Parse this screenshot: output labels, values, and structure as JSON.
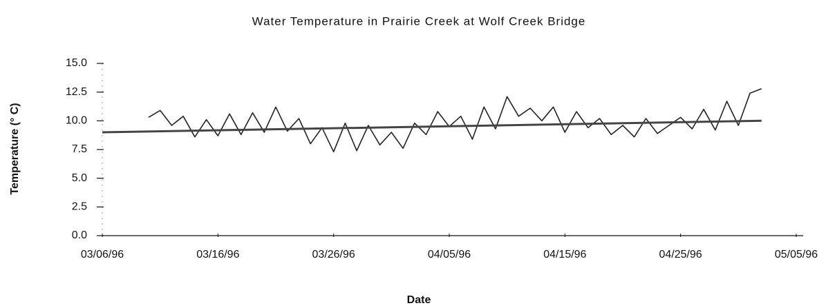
{
  "chart_data": {
    "type": "line",
    "title": "Water Temperature in Prairie Creek at Wolf Creek Bridge",
    "xlabel": "Date",
    "ylabel": "Temperature (° C)",
    "xlim": [
      "03/06/96",
      "05/05/96"
    ],
    "xticks": [
      "03/06/96",
      "03/16/96",
      "03/26/96",
      "04/05/96",
      "04/15/96",
      "04/25/96",
      "05/05/96"
    ],
    "ylim": [
      0,
      15
    ],
    "yticks": [
      {
        "value": 0,
        "label": "0.0"
      },
      {
        "value": 2.5,
        "label": "2.5"
      },
      {
        "value": 5,
        "label": "5.0"
      },
      {
        "value": 7.5,
        "label": "7.5"
      },
      {
        "value": 10,
        "label": "10.0"
      },
      {
        "value": 12.5,
        "label": "12.5"
      },
      {
        "value": 15,
        "label": "15.0"
      }
    ],
    "series": [
      {
        "color": "#222222",
        "x": [
          "03/10/96",
          "03/11/96",
          "03/12/96",
          "03/13/96",
          "03/14/96",
          "03/15/96",
          "03/16/96",
          "03/17/96",
          "03/18/96",
          "03/19/96",
          "03/20/96",
          "03/21/96",
          "03/22/96",
          "03/23/96",
          "03/24/96",
          "03/25/96",
          "03/26/96",
          "03/27/96",
          "03/28/96",
          "03/29/96",
          "03/30/96",
          "03/31/96",
          "04/01/96",
          "04/02/96",
          "04/03/96",
          "04/04/96",
          "04/05/96",
          "04/06/96",
          "04/07/96",
          "04/08/96",
          "04/09/96",
          "04/10/96",
          "04/11/96",
          "04/12/96",
          "04/13/96",
          "04/14/96",
          "04/15/96",
          "04/16/96",
          "04/17/96",
          "04/18/96",
          "04/19/96",
          "04/20/96",
          "04/21/96",
          "04/22/96",
          "04/23/96",
          "04/24/96",
          "04/25/96",
          "04/26/96",
          "04/27/96",
          "04/28/96",
          "04/29/96",
          "04/30/96",
          "05/01/96",
          "05/02/96"
        ],
        "values": [
          10.3,
          10.9,
          9.6,
          10.4,
          8.6,
          10.1,
          8.7,
          10.6,
          8.8,
          10.7,
          9.0,
          11.2,
          9.1,
          10.2,
          8.0,
          9.4,
          7.3,
          9.8,
          7.4,
          9.6,
          7.9,
          9.0,
          7.6,
          9.8,
          8.8,
          10.8,
          9.5,
          10.4,
          8.4,
          11.2,
          9.3,
          12.1,
          10.4,
          11.1,
          10.0,
          11.2,
          9.0,
          10.8,
          9.4,
          10.2,
          8.8,
          9.6,
          8.6,
          10.2,
          8.9,
          9.6,
          10.3,
          9.3,
          11.0,
          9.2,
          11.7,
          9.6,
          12.4,
          12.8
        ]
      },
      {
        "color": "#444444",
        "x": [
          "03/06/96",
          "05/02/96"
        ],
        "values": [
          9.0,
          10.0
        ]
      }
    ]
  }
}
